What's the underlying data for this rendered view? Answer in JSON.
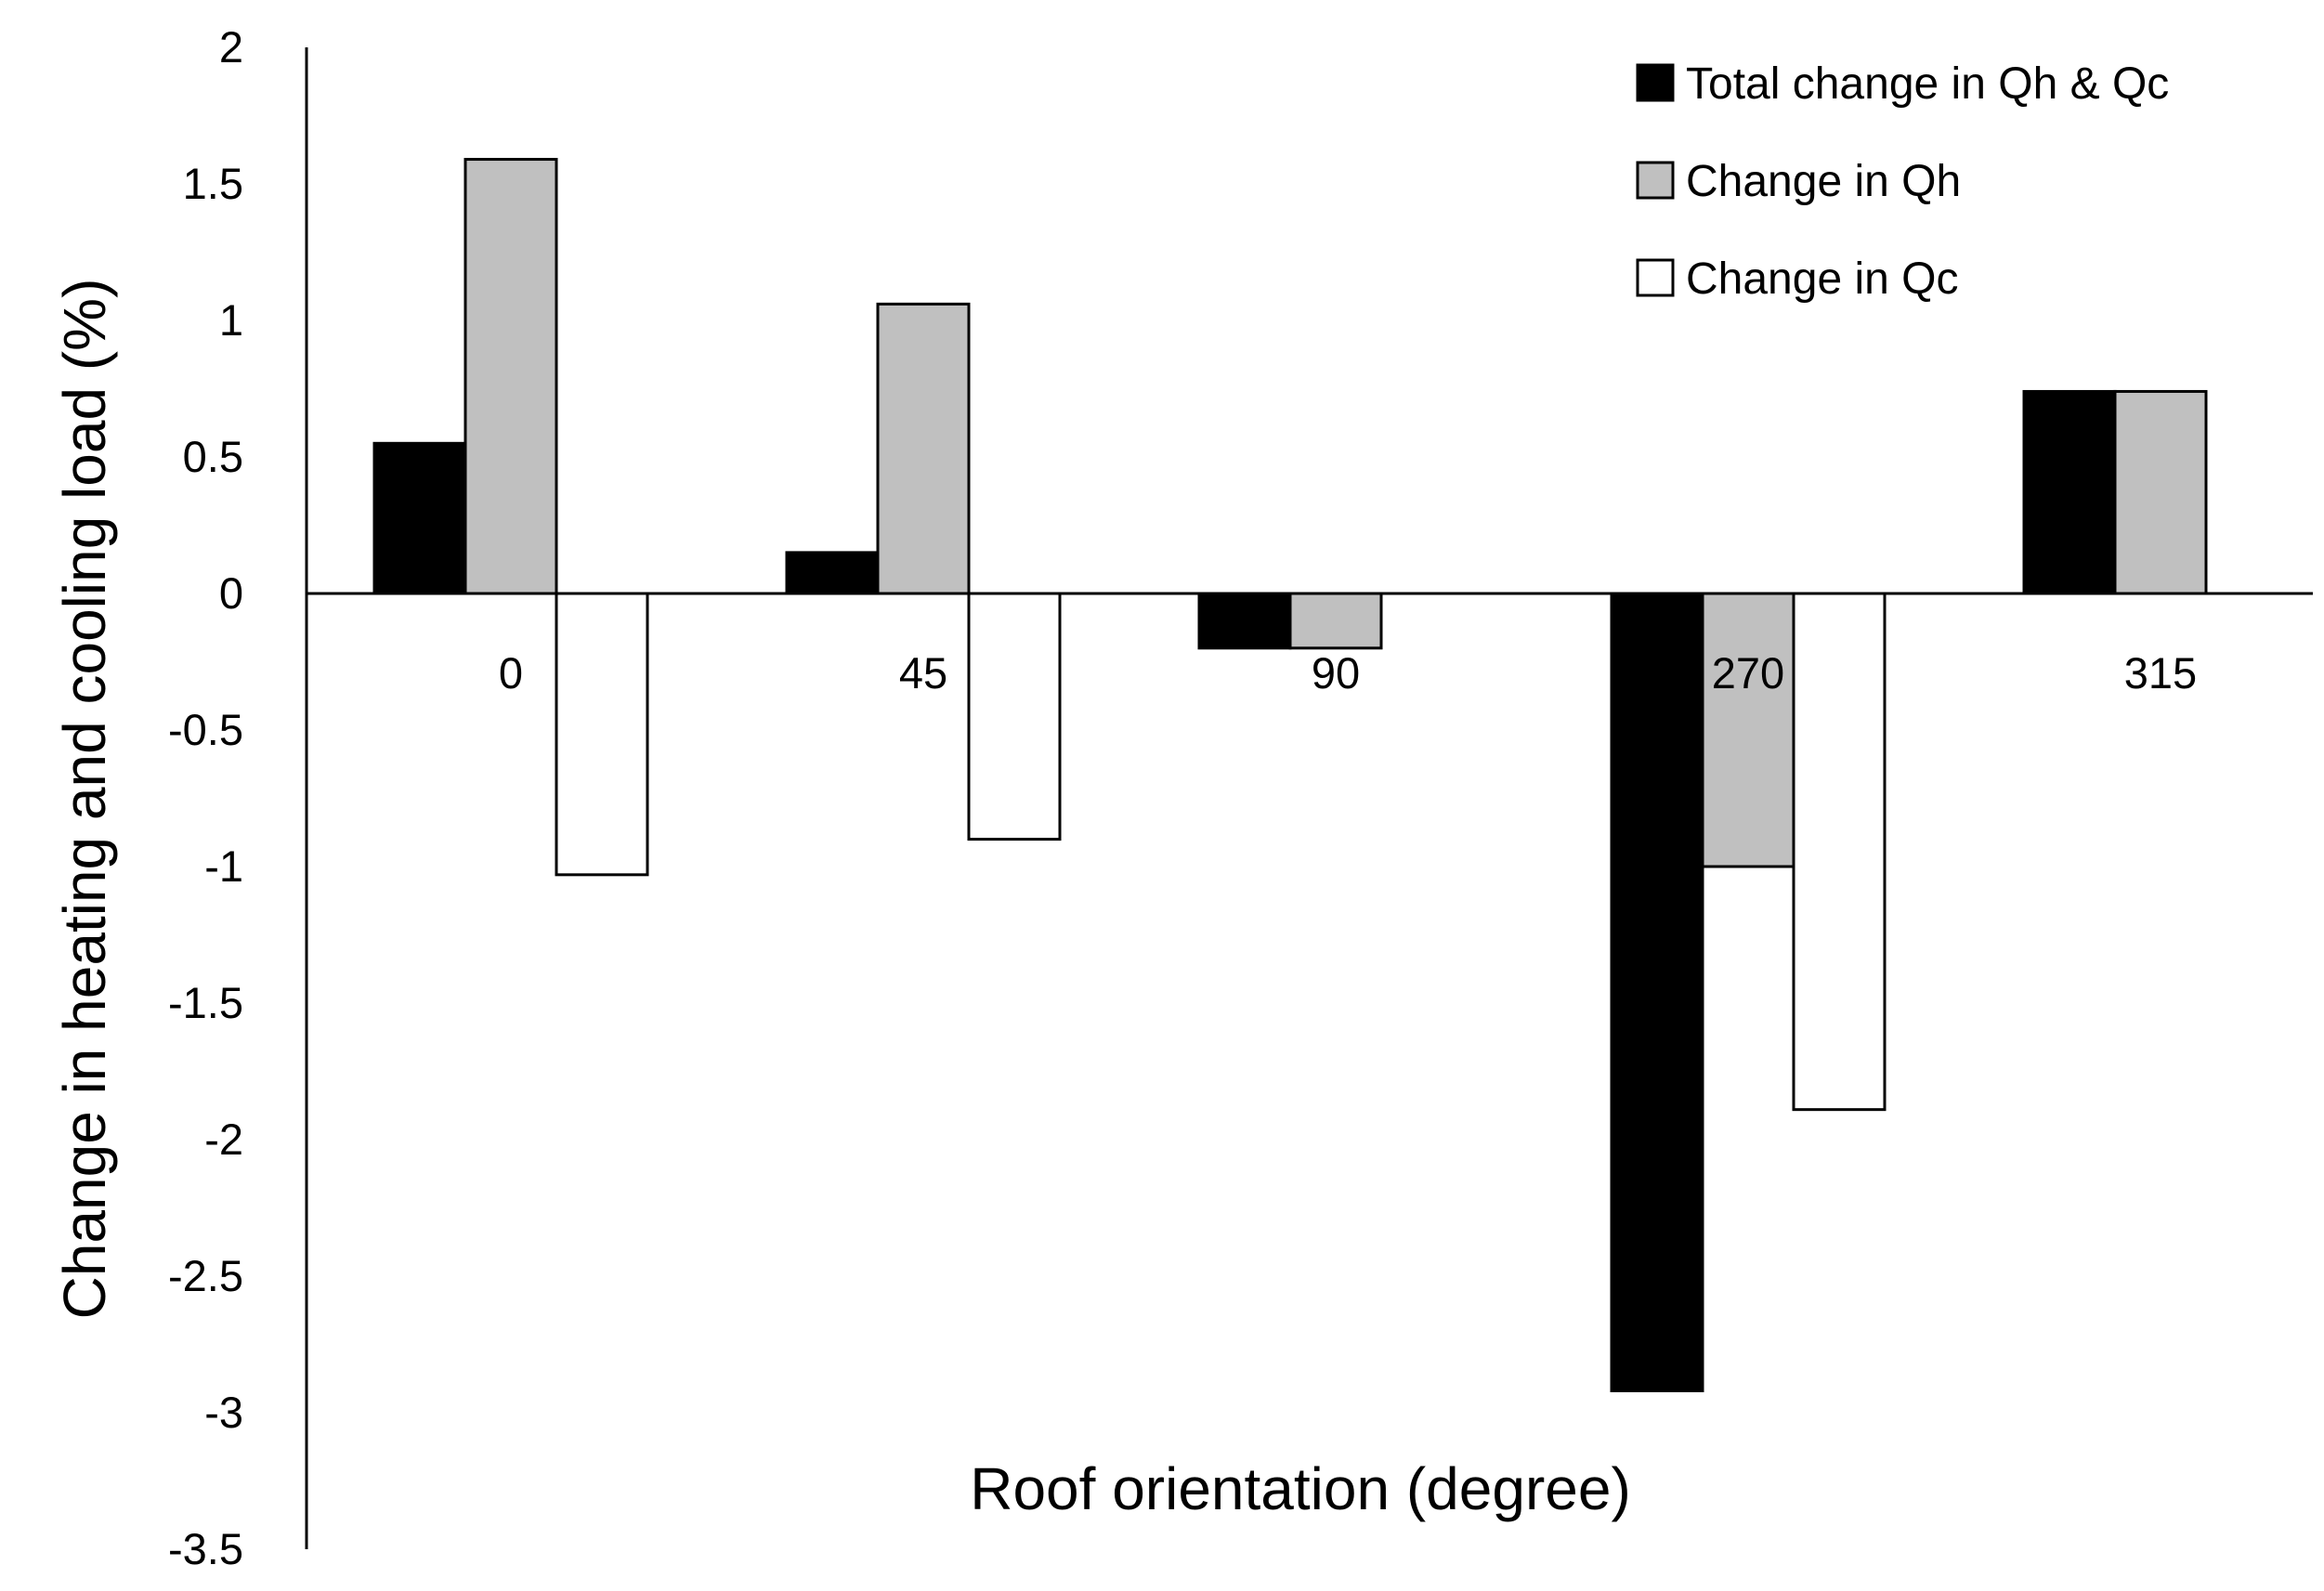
{
  "chart_data": {
    "type": "bar",
    "categories": [
      "0",
      "45",
      "90",
      "270",
      "315"
    ],
    "series": [
      {
        "name": "Total change in Qh & Qc",
        "color": "#000000",
        "values": [
          0.55,
          0.15,
          -0.2,
          -2.92,
          0.74
        ]
      },
      {
        "name": "Change in Qh",
        "color": "#c0c0c0",
        "values": [
          1.59,
          1.06,
          -0.2,
          -1.0,
          0.74
        ]
      },
      {
        "name": "Change in Qc",
        "color": "#ffffff",
        "values": [
          -1.03,
          -0.9,
          0,
          -1.89,
          0
        ]
      }
    ],
    "xlabel": "Roof orientation (degree)",
    "ylabel": "Change in heating and cooling load  (%)",
    "ylim": [
      -3.5,
      2
    ],
    "yticks": [
      "2",
      "1.5",
      "1",
      "0.5",
      "0",
      "-0.5",
      "-1",
      "-1.5",
      "-2",
      "-2.5",
      "-3",
      "-3.5"
    ],
    "grid": false,
    "legend_position": "top-right"
  }
}
